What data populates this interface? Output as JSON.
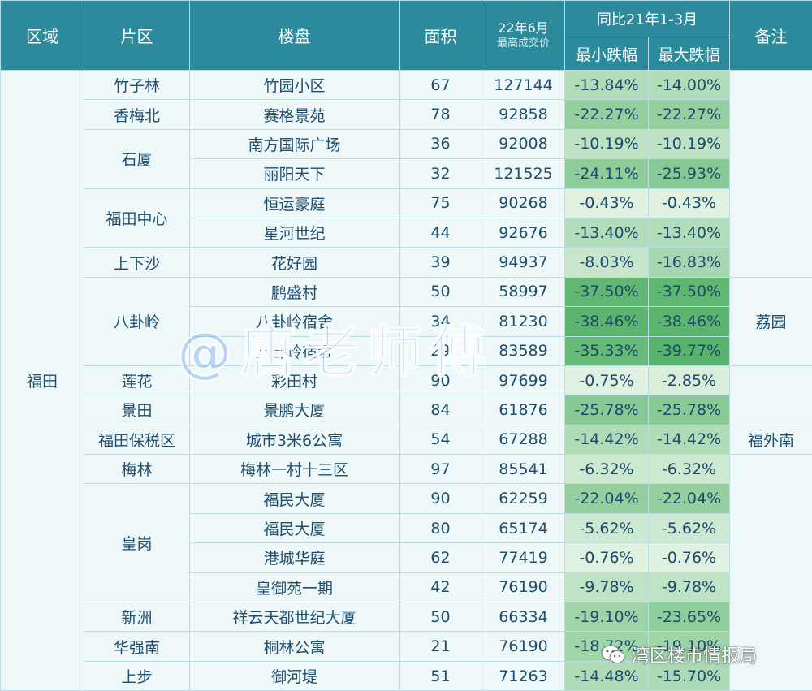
{
  "header": {
    "region": "区域",
    "area": "片区",
    "estate": "楼盘",
    "size": "面积",
    "price_top": "22年6月",
    "price_bottom": "最高成交价",
    "yoy_group": "同比21年1-3月",
    "min_drop": "最小跌幅",
    "max_drop": "最大跌幅",
    "note": "备注"
  },
  "region": "福田",
  "areas": [
    "竹子林",
    "香梅北",
    "石厦",
    "福田中心",
    "上下沙",
    "八卦岭",
    "莲花",
    "景田",
    "福田保税区",
    "梅林",
    "皇岗",
    "新洲",
    "华强南",
    "上步"
  ],
  "notes": [
    "荔园",
    "福外南"
  ],
  "rows": [
    {
      "estate": "竹园小区",
      "size": "67",
      "price": "127144",
      "min": "-13.84%",
      "max": "-14.00%"
    },
    {
      "estate": "赛格景苑",
      "size": "78",
      "price": "92858",
      "min": "-22.27%",
      "max": "-22.27%"
    },
    {
      "estate": "南方国际广场",
      "size": "36",
      "price": "92008",
      "min": "-10.19%",
      "max": "-10.19%"
    },
    {
      "estate": "丽阳天下",
      "size": "32",
      "price": "121525",
      "min": "-24.11%",
      "max": "-25.93%"
    },
    {
      "estate": "恒运豪庭",
      "size": "75",
      "price": "90268",
      "min": "-0.43%",
      "max": "-0.43%"
    },
    {
      "estate": "星河世纪",
      "size": "44",
      "price": "92676",
      "min": "-13.40%",
      "max": "-13.40%"
    },
    {
      "estate": "花好园",
      "size": "39",
      "price": "94937",
      "min": "-8.03%",
      "max": "-16.83%"
    },
    {
      "estate": "鹏盛村",
      "size": "50",
      "price": "58997",
      "min": "-37.50%",
      "max": "-37.50%"
    },
    {
      "estate": "八卦岭宿舍",
      "size": "34",
      "price": "81230",
      "min": "-38.46%",
      "max": "-38.46%"
    },
    {
      "estate": "八卦岭宿舍",
      "size": "29",
      "price": "83589",
      "min": "-35.33%",
      "max": "-39.77%"
    },
    {
      "estate": "彩田村",
      "size": "90",
      "price": "97699",
      "min": "-0.75%",
      "max": "-2.85%"
    },
    {
      "estate": "景鹏大厦",
      "size": "84",
      "price": "61876",
      "min": "-25.78%",
      "max": "-25.78%"
    },
    {
      "estate": "城市3米6公寓",
      "size": "54",
      "price": "67288",
      "min": "-14.42%",
      "max": "-14.42%"
    },
    {
      "estate": "梅林一村十三区",
      "size": "97",
      "price": "85541",
      "min": "-6.32%",
      "max": "-6.32%"
    },
    {
      "estate": "福民大厦",
      "size": "90",
      "price": "62259",
      "min": "-22.04%",
      "max": "-22.04%"
    },
    {
      "estate": "福民大厦",
      "size": "80",
      "price": "65174",
      "min": "-5.62%",
      "max": "-5.62%"
    },
    {
      "estate": "港城华庭",
      "size": "62",
      "price": "77419",
      "min": "-0.76%",
      "max": "-0.76%"
    },
    {
      "estate": "皇御苑一期",
      "size": "42",
      "price": "76190",
      "min": "-9.78%",
      "max": "-9.78%"
    },
    {
      "estate": "祥云天都世纪大厦",
      "size": "50",
      "price": "66334",
      "min": "-19.10%",
      "max": "-23.65%"
    },
    {
      "estate": "桐林公寓",
      "size": "21",
      "price": "76190",
      "min": "-18.72%",
      "max": "-19.10%"
    },
    {
      "estate": "御河堤",
      "size": "51",
      "price": "71263",
      "min": "-14.48%",
      "max": "-15.70%"
    }
  ],
  "watermark": "@唐老师傅",
  "brand": "湾区楼市情报局",
  "colors": {
    "header": "#2b8a9c",
    "cell": "#eef8f8",
    "heat_light": "#e2f2e2",
    "heat_dark": "#56b36a"
  }
}
